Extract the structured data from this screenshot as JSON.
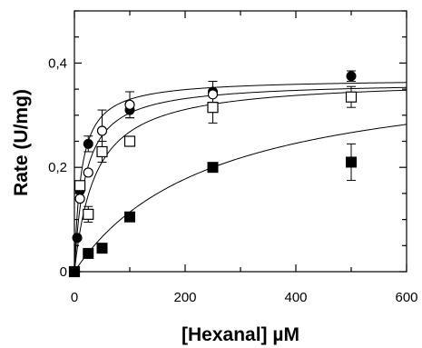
{
  "chart_data": {
    "type": "scatter",
    "title": "",
    "xlabel": "[Hexanal] µM",
    "ylabel": "Rate (U/mg)",
    "xlim": [
      0,
      600
    ],
    "ylim": [
      0,
      0.5
    ],
    "xticks": [
      0,
      200,
      400,
      600
    ],
    "xtick_labels": [
      "0",
      "200",
      "400",
      "600"
    ],
    "yticks": [
      0,
      0.2,
      0.4
    ],
    "ytick_labels": [
      "0",
      "0,2",
      "0,4"
    ],
    "grid": false,
    "legend": "none",
    "series": [
      {
        "marker": "filled-circle",
        "color": "#000000",
        "points": [
          {
            "x": 0,
            "y": 0.0
          },
          {
            "x": 5,
            "y": 0.065
          },
          {
            "x": 10,
            "y": 0.155
          },
          {
            "x": 25,
            "y": 0.245
          },
          {
            "x": 100,
            "y": 0.31
          },
          {
            "x": 250,
            "y": 0.345
          },
          {
            "x": 500,
            "y": 0.375
          }
        ],
        "error": [
          0,
          0,
          0,
          0.015,
          0.015,
          0.02,
          0.01
        ],
        "fit": {
          "model": "michaelis-menten",
          "vmax": 0.37,
          "km": 12
        }
      },
      {
        "marker": "open-circle",
        "color": "#000000",
        "points": [
          {
            "x": 10,
            "y": 0.14
          },
          {
            "x": 25,
            "y": 0.19
          },
          {
            "x": 50,
            "y": 0.27
          },
          {
            "x": 100,
            "y": 0.32
          },
          {
            "x": 250,
            "y": 0.34
          }
        ],
        "error": [
          0,
          0,
          0.04,
          0.025,
          0.025
        ],
        "fit": {
          "model": "michaelis-menten",
          "vmax": 0.365,
          "km": 20
        }
      },
      {
        "marker": "open-square",
        "color": "#000000",
        "points": [
          {
            "x": 0,
            "y": 0.0
          },
          {
            "x": 10,
            "y": 0.165
          },
          {
            "x": 25,
            "y": 0.11
          },
          {
            "x": 50,
            "y": 0.23
          },
          {
            "x": 100,
            "y": 0.25
          },
          {
            "x": 250,
            "y": 0.315
          },
          {
            "x": 500,
            "y": 0.335
          }
        ],
        "error": [
          0,
          0,
          0.015,
          0.02,
          0,
          0.03,
          0.02
        ],
        "fit": {
          "model": "michaelis-menten",
          "vmax": 0.37,
          "km": 38
        }
      },
      {
        "marker": "filled-square",
        "color": "#000000",
        "points": [
          {
            "x": 0,
            "y": 0.0
          },
          {
            "x": 25,
            "y": 0.035
          },
          {
            "x": 50,
            "y": 0.045
          },
          {
            "x": 100,
            "y": 0.105
          },
          {
            "x": 250,
            "y": 0.2
          },
          {
            "x": 500,
            "y": 0.21
          }
        ],
        "error": [
          0,
          0,
          0,
          0,
          0,
          0.035
        ],
        "fit": {
          "model": "michaelis-menten",
          "vmax": 0.4,
          "km": 250
        }
      }
    ]
  }
}
